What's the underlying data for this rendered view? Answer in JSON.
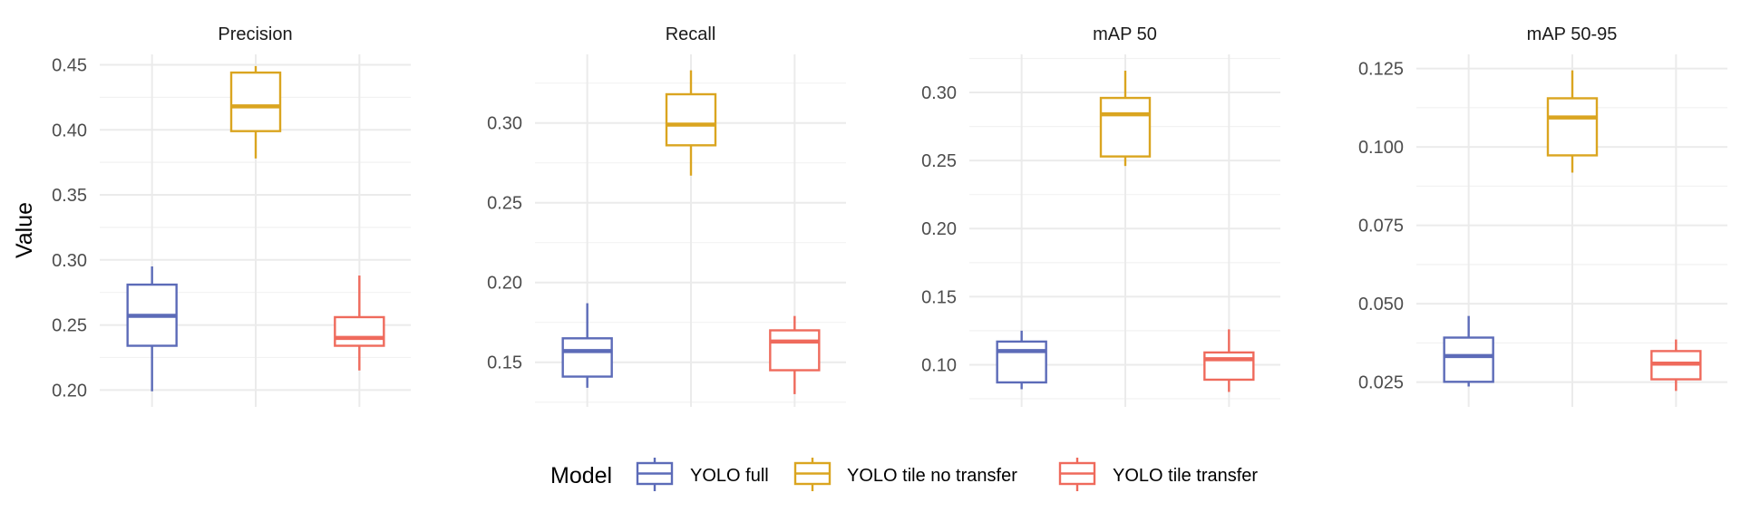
{
  "chart_data": {
    "type": "boxplot",
    "layout": "facet-wrap, 1 row x 4 panels, free y scales",
    "y_label": "Value",
    "x_label": "",
    "grid": true,
    "legend": {
      "title": "Model",
      "position": "bottom",
      "entries": [
        {
          "label": "YOLO full",
          "color": "#5C6BB8"
        },
        {
          "label": "YOLO tile no transfer",
          "color": "#DAA520"
        },
        {
          "label": "YOLO tile transfer",
          "color": "#EF6A5C"
        }
      ]
    },
    "groups": [
      "YOLO full",
      "YOLO tile no transfer",
      "YOLO tile transfer"
    ],
    "panels": [
      {
        "title": "Precision",
        "ylim": [
          0.187,
          0.458
        ],
        "yticks": [
          0.2,
          0.25,
          0.3,
          0.35,
          0.4,
          0.45
        ],
        "ytick_labels": [
          "0.20",
          "0.25",
          "0.30",
          "0.35",
          "0.40",
          "0.45"
        ],
        "minor_ticks": [
          0.225,
          0.275,
          0.325,
          0.375,
          0.425
        ],
        "boxes": [
          {
            "group": "YOLO full",
            "min": 0.199,
            "q1": 0.234,
            "median": 0.257,
            "q3": 0.281,
            "max": 0.295
          },
          {
            "group": "YOLO tile no transfer",
            "min": 0.378,
            "q1": 0.399,
            "median": 0.418,
            "q3": 0.444,
            "max": 0.449
          },
          {
            "group": "YOLO tile transfer",
            "min": 0.215,
            "q1": 0.234,
            "median": 0.24,
            "q3": 0.256,
            "max": 0.288
          }
        ]
      },
      {
        "title": "Recall",
        "ylim": [
          0.122,
          0.343
        ],
        "yticks": [
          0.15,
          0.2,
          0.25,
          0.3
        ],
        "ytick_labels": [
          "0.15",
          "0.20",
          "0.25",
          "0.30"
        ],
        "minor_ticks": [
          0.125,
          0.175,
          0.225,
          0.275,
          0.325
        ],
        "boxes": [
          {
            "group": "YOLO full",
            "min": 0.134,
            "q1": 0.141,
            "median": 0.157,
            "q3": 0.165,
            "max": 0.187
          },
          {
            "group": "YOLO tile no transfer",
            "min": 0.267,
            "q1": 0.286,
            "median": 0.299,
            "q3": 0.318,
            "max": 0.333
          },
          {
            "group": "YOLO tile transfer",
            "min": 0.13,
            "q1": 0.145,
            "median": 0.163,
            "q3": 0.17,
            "max": 0.179
          }
        ]
      },
      {
        "title": "mAP 50",
        "ylim": [
          0.069,
          0.328
        ],
        "yticks": [
          0.1,
          0.15,
          0.2,
          0.25,
          0.3
        ],
        "ytick_labels": [
          "0.10",
          "0.15",
          "0.20",
          "0.25",
          "0.30"
        ],
        "minor_ticks": [
          0.075,
          0.125,
          0.175,
          0.225,
          0.275,
          0.325
        ],
        "boxes": [
          {
            "group": "YOLO full",
            "min": 0.082,
            "q1": 0.087,
            "median": 0.11,
            "q3": 0.117,
            "max": 0.125
          },
          {
            "group": "YOLO tile no transfer",
            "min": 0.246,
            "q1": 0.253,
            "median": 0.284,
            "q3": 0.296,
            "max": 0.316
          },
          {
            "group": "YOLO tile transfer",
            "min": 0.08,
            "q1": 0.089,
            "median": 0.104,
            "q3": 0.109,
            "max": 0.126
          }
        ]
      },
      {
        "title": "mAP 50-95",
        "ylim": [
          0.0171,
          0.1295
        ],
        "yticks": [
          0.025,
          0.05,
          0.075,
          0.1,
          0.125
        ],
        "ytick_labels": [
          "0.025",
          "0.050",
          "0.075",
          "0.100",
          "0.125"
        ],
        "minor_ticks": [
          0.0375,
          0.0625,
          0.0875,
          0.1125
        ],
        "boxes": [
          {
            "group": "YOLO full",
            "min": 0.0236,
            "q1": 0.0251,
            "median": 0.0333,
            "q3": 0.0392,
            "max": 0.0461
          },
          {
            "group": "YOLO tile no transfer",
            "min": 0.0918,
            "q1": 0.0973,
            "median": 0.1094,
            "q3": 0.1155,
            "max": 0.1244
          },
          {
            "group": "YOLO tile transfer",
            "min": 0.0222,
            "q1": 0.0259,
            "median": 0.0309,
            "q3": 0.0349,
            "max": 0.0386
          }
        ]
      }
    ]
  }
}
